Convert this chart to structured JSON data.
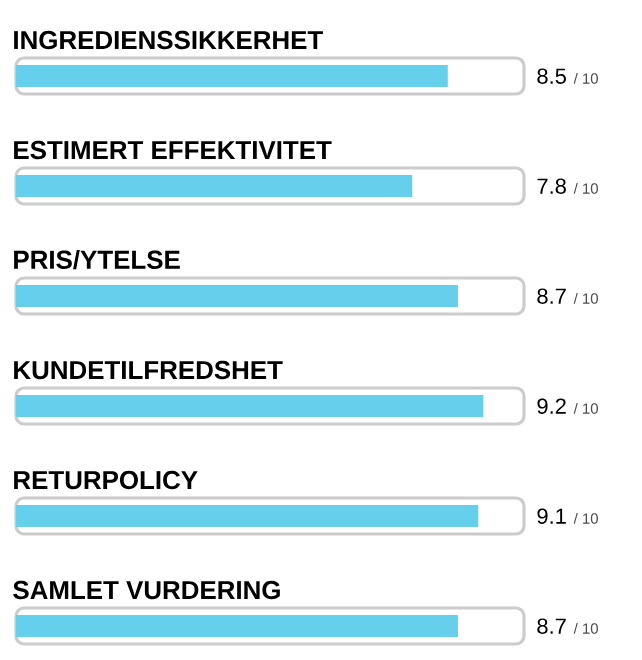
{
  "chart_data": {
    "type": "bar",
    "orientation": "horizontal",
    "categories": [
      "INGREDIENSSIKKERHET",
      "ESTIMERT EFFEKTIVITET",
      "PRIS/YTELSE",
      "KUNDETILFREDSHET",
      "RETURPOLICY",
      "SAMLET VURDERING"
    ],
    "values": [
      8.5,
      7.8,
      8.7,
      9.2,
      9.1,
      8.7
    ],
    "data_labels": true,
    "annotations": [
      "/ 10",
      "/ 10",
      "/ 10",
      "/ 10",
      "/ 10",
      "/ 10"
    ],
    "color": "#66d0ec",
    "xlim": [
      0,
      10
    ],
    "tick_labels": false
  }
}
